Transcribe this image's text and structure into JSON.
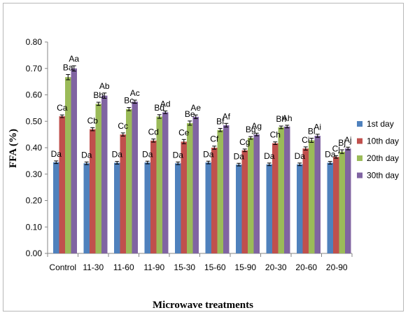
{
  "chart_data": {
    "type": "bar",
    "xlabel": "Microwave treatments",
    "ylabel": "FFA (%)",
    "ylim": [
      0,
      0.8
    ],
    "yticks": [
      "0.00",
      "0.10",
      "0.20",
      "0.30",
      "0.40",
      "0.50",
      "0.60",
      "0.70",
      "0.80"
    ],
    "grid": false,
    "legend_position": "right",
    "categories": [
      "Control",
      "11-30",
      "11-60",
      "11-90",
      "15-30",
      "15-60",
      "15-90",
      "20-30",
      "20-60",
      "20-90"
    ],
    "series": [
      {
        "name": "1st day",
        "color": "#4f81bd",
        "values": [
          0.345,
          0.341,
          0.343,
          0.344,
          0.341,
          0.344,
          0.336,
          0.337,
          0.337,
          0.343
        ],
        "errors": [
          0.005,
          0.005,
          0.005,
          0.005,
          0.005,
          0.005,
          0.005,
          0.005,
          0.005,
          0.005
        ],
        "labels": [
          "Da",
          "Da",
          "Da",
          "Da",
          "Da",
          "Da",
          "Da",
          "Da",
          "Da",
          "Da"
        ]
      },
      {
        "name": "10th day",
        "color": "#c0504d",
        "values": [
          0.519,
          0.47,
          0.45,
          0.427,
          0.423,
          0.4,
          0.39,
          0.417,
          0.397,
          0.365
        ],
        "errors": [
          0.005,
          0.006,
          0.006,
          0.006,
          0.008,
          0.006,
          0.005,
          0.005,
          0.006,
          0.005
        ],
        "labels": [
          "Ca",
          "Cb",
          "Cc",
          "Cd",
          "Ce",
          "Cf",
          "Cg",
          "Ch",
          "Ci",
          "Cj"
        ]
      },
      {
        "name": "20th day",
        "color": "#9bbb59",
        "values": [
          0.667,
          0.566,
          0.546,
          0.518,
          0.493,
          0.467,
          0.437,
          0.477,
          0.428,
          0.385
        ],
        "errors": [
          0.01,
          0.006,
          0.006,
          0.007,
          0.008,
          0.006,
          0.005,
          0.005,
          0.008,
          0.007
        ],
        "labels": [
          "Ba",
          "Bb",
          "Bc",
          "Bd",
          "Be",
          "Bf",
          "Bg",
          "Bh",
          "Bi",
          "Bj"
        ]
      },
      {
        "name": "30th day",
        "color": "#8064a2",
        "values": [
          0.7,
          0.597,
          0.574,
          0.534,
          0.517,
          0.485,
          0.45,
          0.48,
          0.445,
          0.397
        ],
        "errors": [
          0.01,
          0.01,
          0.006,
          0.005,
          0.007,
          0.007,
          0.005,
          0.005,
          0.006,
          0.005
        ],
        "labels": [
          "Aa",
          "Ab",
          "Ac",
          "Ad",
          "Ae",
          "Af",
          "Ag",
          "Ah",
          "Ai",
          "Aj"
        ]
      }
    ]
  }
}
